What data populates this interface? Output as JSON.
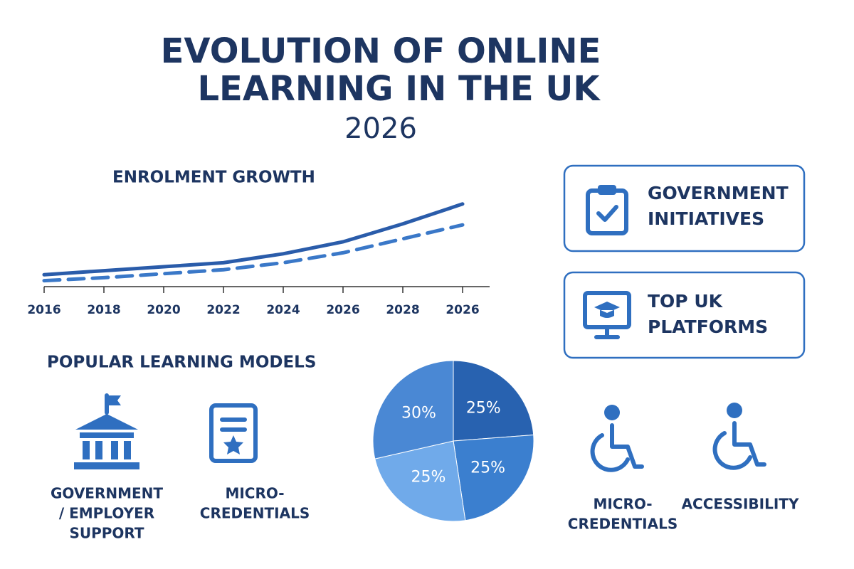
{
  "header": {
    "title_lines": [
      "EVOLUTION OF ONLINE",
      "LEARNING IN THE UK"
    ],
    "subtitle": "2026"
  },
  "chart_data": [
    {
      "type": "line",
      "title": "ENROLMENT GROWTH",
      "categories": [
        "2016",
        "2018",
        "2020",
        "2022",
        "2024",
        "2026",
        "2028",
        "2026"
      ],
      "ylim": [
        0,
        100
      ],
      "series": [
        {
          "color": "#2a5caa",
          "dash": false,
          "values": [
            12,
            16,
            20,
            24,
            33,
            45,
            63,
            83
          ]
        },
        {
          "color": "#3a78c8",
          "dash": true,
          "values": [
            6,
            9,
            13,
            17,
            24,
            34,
            48,
            62
          ]
        }
      ]
    },
    {
      "type": "pie",
      "values": [
        25,
        25,
        25,
        30
      ],
      "value_labels": [
        "25%",
        "25%",
        "25%",
        "30%"
      ],
      "colors": [
        "#2862b0",
        "#3b7fcf",
        "#70aaea",
        "#4a88d4"
      ]
    }
  ],
  "cards": [
    {
      "lines": [
        "GOVERNMENT",
        "INITIATIVES"
      ]
    },
    {
      "lines": [
        "TOP UK",
        "PLATFORMS"
      ]
    }
  ],
  "models": {
    "title": "POPULAR LEARNING MODELS",
    "items": [
      {
        "lines": [
          "GOVERNMENT",
          "/ EMPLOYER",
          "SUPPORT"
        ]
      },
      {
        "lines": [
          "MICRO-",
          "CREDENTIALS"
        ]
      },
      {
        "lines": [
          "MICRO-",
          "CREDENTIALS"
        ]
      },
      {
        "lines": [
          "ACCESSIBILITY"
        ]
      }
    ]
  }
}
